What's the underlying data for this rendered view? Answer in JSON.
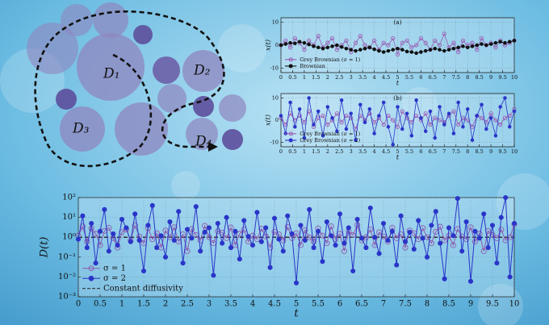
{
  "diagram": {
    "labels": [
      "D₁",
      "D₂",
      "D₃",
      "D₄"
    ]
  },
  "chart_data": [
    {
      "type": "line",
      "panel_label": "(a)",
      "xlabel": "t",
      "ylabel": "x(t)",
      "x": [
        0,
        0.2,
        0.4,
        0.6,
        0.8,
        1,
        1.2,
        1.4,
        1.6,
        1.8,
        2,
        2.2,
        2.4,
        2.6,
        2.8,
        3,
        3.2,
        3.4,
        3.6,
        3.8,
        4,
        4.2,
        4.4,
        4.6,
        4.8,
        5,
        5.2,
        5.4,
        5.6,
        5.8,
        6,
        6.2,
        6.4,
        6.6,
        6.8,
        7,
        7.2,
        7.4,
        7.6,
        7.8,
        8,
        8.2,
        8.4,
        8.6,
        8.8,
        9,
        9.2,
        9.4,
        9.6,
        9.8,
        10
      ],
      "series": [
        {
          "name": "Grey Brownian (σ = 1)",
          "color": "#9a5cb4",
          "marker": "open-circle",
          "values": [
            0,
            2,
            -1,
            3,
            1,
            -2,
            2,
            0,
            4,
            -1,
            1,
            3,
            -2,
            0,
            2,
            -3,
            1,
            4,
            0,
            -1,
            2,
            -2,
            1,
            0,
            3,
            -4,
            1,
            2,
            -1,
            0,
            3,
            1,
            -2,
            2,
            0,
            5,
            -1,
            1,
            -3,
            2,
            0,
            1,
            -2,
            3,
            0,
            1,
            -1,
            2,
            0,
            1,
            2
          ]
        },
        {
          "name": "Brownian",
          "color": "#111111",
          "marker": "dot",
          "values": [
            0,
            0.5,
            1,
            0.8,
            1.5,
            1,
            0.3,
            -0.5,
            -1,
            -1.5,
            -1,
            -0.5,
            0,
            -0.8,
            -1.5,
            -2,
            -2.5,
            -2,
            -1.5,
            -1,
            -1.8,
            -2.5,
            -3,
            -2.5,
            -2,
            -1.5,
            -2,
            -2.8,
            -3,
            -3.5,
            -3,
            -2.5,
            -2,
            -1.5,
            -2,
            -2.5,
            -2,
            -1.5,
            -1,
            -0.5,
            -1,
            -0.5,
            0,
            0.5,
            0,
            0.5,
            1,
            1.5,
            1,
            1.5,
            2
          ]
        }
      ],
      "xlim": [
        0,
        10
      ],
      "xticks": [
        0,
        0.5,
        1,
        1.5,
        2,
        2.5,
        3,
        3.5,
        4,
        4.5,
        5,
        5.5,
        6,
        6.5,
        7,
        7.5,
        8,
        8.5,
        9,
        9.5,
        10
      ],
      "ylim": [
        -12,
        12
      ],
      "yticks": [
        -10,
        0,
        10
      ],
      "grid": true,
      "legend": "lower left"
    },
    {
      "type": "line",
      "panel_label": "(b)",
      "xlabel": "t",
      "ylabel": "x(t)",
      "x": [
        0,
        0.2,
        0.4,
        0.6,
        0.8,
        1,
        1.2,
        1.4,
        1.6,
        1.8,
        2,
        2.2,
        2.4,
        2.6,
        2.8,
        3,
        3.2,
        3.4,
        3.6,
        3.8,
        4,
        4.2,
        4.4,
        4.6,
        4.8,
        5,
        5.2,
        5.4,
        5.6,
        5.8,
        6,
        6.2,
        6.4,
        6.6,
        6.8,
        7,
        7.2,
        7.4,
        7.6,
        7.8,
        8,
        8.2,
        8.4,
        8.6,
        8.8,
        9,
        9.2,
        9.4,
        9.6,
        9.8,
        10
      ],
      "series": [
        {
          "name": "Grey Brownian (σ = 1)",
          "color": "#9a5cb4",
          "marker": "open-circle",
          "values": [
            1,
            -2,
            3,
            0,
            2,
            -1,
            4,
            -3,
            1,
            2,
            -2,
            0,
            3,
            -1,
            2,
            1,
            -4,
            2,
            0,
            3,
            -1,
            1,
            -2,
            2,
            0,
            -3,
            4,
            1,
            -1,
            2,
            0,
            3,
            -2,
            1,
            0,
            -1,
            2,
            4,
            -2,
            1,
            0,
            -3,
            2,
            1,
            -1,
            3,
            0,
            -2,
            1,
            2,
            5
          ]
        },
        {
          "name": "Grey Brownian (σ = 2)",
          "color": "#2a35c8",
          "marker": "dot",
          "values": [
            2,
            -6,
            8,
            -3,
            5,
            -8,
            10,
            -2,
            4,
            -7,
            6,
            1,
            -5,
            9,
            -4,
            3,
            -9,
            7,
            -1,
            5,
            -6,
            2,
            8,
            -3,
            -11,
            6,
            -4,
            3,
            -7,
            9,
            1,
            -5,
            4,
            -8,
            6,
            -2,
            3,
            -6,
            8,
            -3,
            5,
            -9,
            2,
            7,
            -4,
            1,
            -7,
            6,
            10,
            -3,
            4
          ]
        }
      ],
      "xlim": [
        0,
        10
      ],
      "xticks": [
        0,
        0.5,
        1,
        1.5,
        2,
        2.5,
        3,
        3.5,
        4,
        4.5,
        5,
        5.5,
        6,
        6.5,
        7,
        7.5,
        8,
        8.5,
        9,
        9.5,
        10
      ],
      "ylim": [
        -12,
        12
      ],
      "yticks": [
        -10,
        0,
        10
      ],
      "grid": true,
      "legend": "lower left"
    },
    {
      "type": "line",
      "xlabel": "t",
      "ylabel": "D(t)",
      "log_y": true,
      "x": [
        0,
        0.1,
        0.2,
        0.3,
        0.4,
        0.5,
        0.6,
        0.7,
        0.8,
        0.9,
        1,
        1.1,
        1.2,
        1.3,
        1.4,
        1.5,
        1.6,
        1.7,
        1.8,
        1.9,
        2,
        2.1,
        2.2,
        2.3,
        2.4,
        2.5,
        2.6,
        2.7,
        2.8,
        2.9,
        3,
        3.1,
        3.2,
        3.3,
        3.4,
        3.5,
        3.6,
        3.7,
        3.8,
        3.9,
        4,
        4.1,
        4.2,
        4.3,
        4.4,
        4.5,
        4.6,
        4.7,
        4.8,
        4.9,
        5,
        5.1,
        5.2,
        5.3,
        5.4,
        5.5,
        5.6,
        5.7,
        5.8,
        5.9,
        6,
        6.1,
        6.2,
        6.3,
        6.4,
        6.5,
        6.6,
        6.7,
        6.8,
        6.9,
        7,
        7.1,
        7.2,
        7.3,
        7.4,
        7.5,
        7.6,
        7.7,
        7.8,
        7.9,
        8,
        8.1,
        8.2,
        8.3,
        8.4,
        8.5,
        8.6,
        8.7,
        8.8,
        8.9,
        9,
        9.1,
        9.2,
        9.3,
        9.4,
        9.5,
        9.6,
        9.7,
        9.8,
        9.9,
        10
      ],
      "series": [
        {
          "name": "σ = 1",
          "color": "#8e5aae",
          "marker": "open-circle",
          "values": [
            1.2,
            3.5,
            0.6,
            2.8,
            1.5,
            0.4,
            2.1,
            3,
            0.9,
            0.3,
            1.8,
            2.5,
            0.7,
            4,
            1.1,
            0.5,
            2.9,
            0.8,
            1.6,
            0.3,
            2.2,
            1,
            3.2,
            0.6,
            1.4,
            0.2,
            2.6,
            1.3,
            0.7,
            3.8,
            1,
            0.5,
            2,
            1.7,
            0.9,
            3.1,
            0.4,
            1.5,
            2.4,
            0.6,
            1.2,
            0.8,
            2.7,
            1.1,
            0.3,
            1.9,
            1.4,
            0.7,
            3.3,
            0.9,
            1.6,
            0.4,
            2.3,
            1,
            0.6,
            2.8,
            1.2,
            0.5,
            3.6,
            0.8,
            1.5,
            0.2,
            2,
            1.3,
            4.2,
            0.7,
            1,
            2.5,
            0.4,
            1.8,
            1.1,
            0.6,
            3,
            0.9,
            1.4,
            0.3,
            2.2,
            1.6,
            0.8,
            2.9,
            1,
            0.5,
            1.9,
            3.4,
            0.7,
            1.2,
            0.4,
            2.6,
            1.1,
            0.8,
            3.2,
            0.6,
            1.5,
            0.2,
            2.1,
            1.3,
            0.9,
            2.4,
            0.7,
            1,
            4.5
          ]
        },
        {
          "name": "σ = 2",
          "color": "#2a35c8",
          "marker": "dot",
          "values": [
            0.8,
            12,
            0.3,
            5,
            0.05,
            2,
            25,
            0.2,
            1.5,
            0.4,
            8,
            3,
            0.6,
            15,
            0.7,
            0.02,
            4,
            40,
            0.3,
            1.2,
            0.1,
            6,
            0.7,
            20,
            0.05,
            2.5,
            0.9,
            35,
            0.2,
            1.8,
            3,
            0.012,
            5,
            0.5,
            10,
            0.3,
            2,
            0.08,
            7,
            1.1,
            0.4,
            18,
            0.6,
            3,
            0.03,
            9,
            0.8,
            0.2,
            12,
            1.5,
            0.005,
            4,
            0.7,
            25,
            0.3,
            2,
            0.06,
            6,
            1.2,
            0.4,
            15,
            0.5,
            3,
            0.02,
            8,
            0.9,
            0.3,
            30,
            1,
            0.15,
            5,
            0.7,
            2,
            0.04,
            12,
            0.6,
            1.8,
            0.25,
            7,
            0.9,
            0.1,
            4,
            20,
            0.5,
            0.008,
            3,
            1.2,
            90,
            0.2,
            6,
            0.006,
            2,
            0.9,
            15,
            0.3,
            4,
            0.05,
            10,
            100,
            0.01,
            5
          ]
        }
      ],
      "hline": {
        "value": 1,
        "label": "Constant diffusivity",
        "color": "#222222",
        "style": "dashed"
      },
      "xlim": [
        0,
        10
      ],
      "xticks": [
        0,
        0.5,
        1,
        1.5,
        2,
        2.5,
        3,
        3.5,
        4,
        4.5,
        5,
        5.5,
        6,
        6.5,
        7,
        7.5,
        8,
        8.5,
        9,
        9.5,
        10
      ],
      "ylim": [
        0.001,
        100
      ],
      "yticks": [
        {
          "value": 0.001,
          "label": "10⁻³"
        },
        {
          "value": 0.01,
          "label": "10⁻²"
        },
        {
          "value": 0.1,
          "label": "10⁻¹"
        },
        {
          "value": 1,
          "label": "10⁰"
        },
        {
          "value": 10,
          "label": "10¹"
        },
        {
          "value": 100,
          "label": "10²"
        }
      ],
      "grid": true,
      "legend": "lower left"
    }
  ]
}
